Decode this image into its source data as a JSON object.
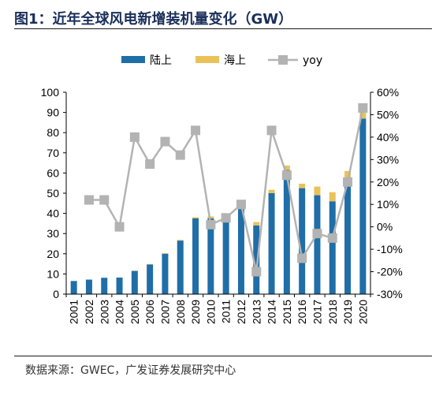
{
  "header": {
    "title": "图1：近年全球风电新增装机量变化（GW）"
  },
  "footer": {
    "source": "数据来源：GWEC，广发证券发展研究中心"
  },
  "colors": {
    "onshore": "#1f6ea8",
    "offshore": "#e9c25a",
    "yoy": "#b3b3b3",
    "title": "#1a2f5a"
  },
  "chart_data": {
    "type": "bar",
    "stacked": true,
    "title": "",
    "xlabel": "",
    "ylabel": "",
    "categories": [
      "2001",
      "2002",
      "2003",
      "2004",
      "2005",
      "2006",
      "2007",
      "2008",
      "2009",
      "2010",
      "2011",
      "2012",
      "2013",
      "2014",
      "2015",
      "2016",
      "2017",
      "2018",
      "2019",
      "2020"
    ],
    "series": [
      {
        "name": "陆上",
        "type": "bar",
        "axis": "left",
        "values": [
          6.5,
          7.2,
          8.1,
          8.2,
          11.5,
          14.7,
          20.0,
          26.5,
          37.5,
          37.5,
          39.0,
          44.0,
          34.0,
          50.0,
          61.5,
          52.5,
          49.0,
          46.0,
          56.0,
          87.0
        ]
      },
      {
        "name": "海上",
        "type": "bar",
        "axis": "left",
        "values": [
          0.0,
          0.0,
          0.0,
          0.0,
          0.1,
          0.2,
          0.3,
          0.4,
          0.6,
          1.0,
          0.9,
          1.3,
          1.7,
          1.7,
          2.2,
          2.2,
          4.3,
          4.5,
          5.0,
          6.0
        ]
      },
      {
        "name": "yoy",
        "type": "line",
        "axis": "right",
        "values": [
          null,
          12,
          12,
          0,
          40,
          28,
          38,
          32,
          43,
          1,
          4,
          10,
          -20,
          43,
          23,
          -14,
          -3,
          -5,
          20,
          53
        ]
      }
    ],
    "ylim": [
      0,
      100
    ],
    "yticks": [
      "0",
      "10",
      "20",
      "30",
      "40",
      "50",
      "60",
      "70",
      "80",
      "90",
      "100"
    ],
    "y2lim": [
      -30,
      60
    ],
    "y2ticks": [
      "-30%",
      "-20%",
      "-10%",
      "0%",
      "10%",
      "20%",
      "30%",
      "40%",
      "50%",
      "60%"
    ],
    "legend": {
      "position": "top",
      "items": [
        "陆上",
        "海上",
        "yoy"
      ]
    },
    "grid": false
  }
}
